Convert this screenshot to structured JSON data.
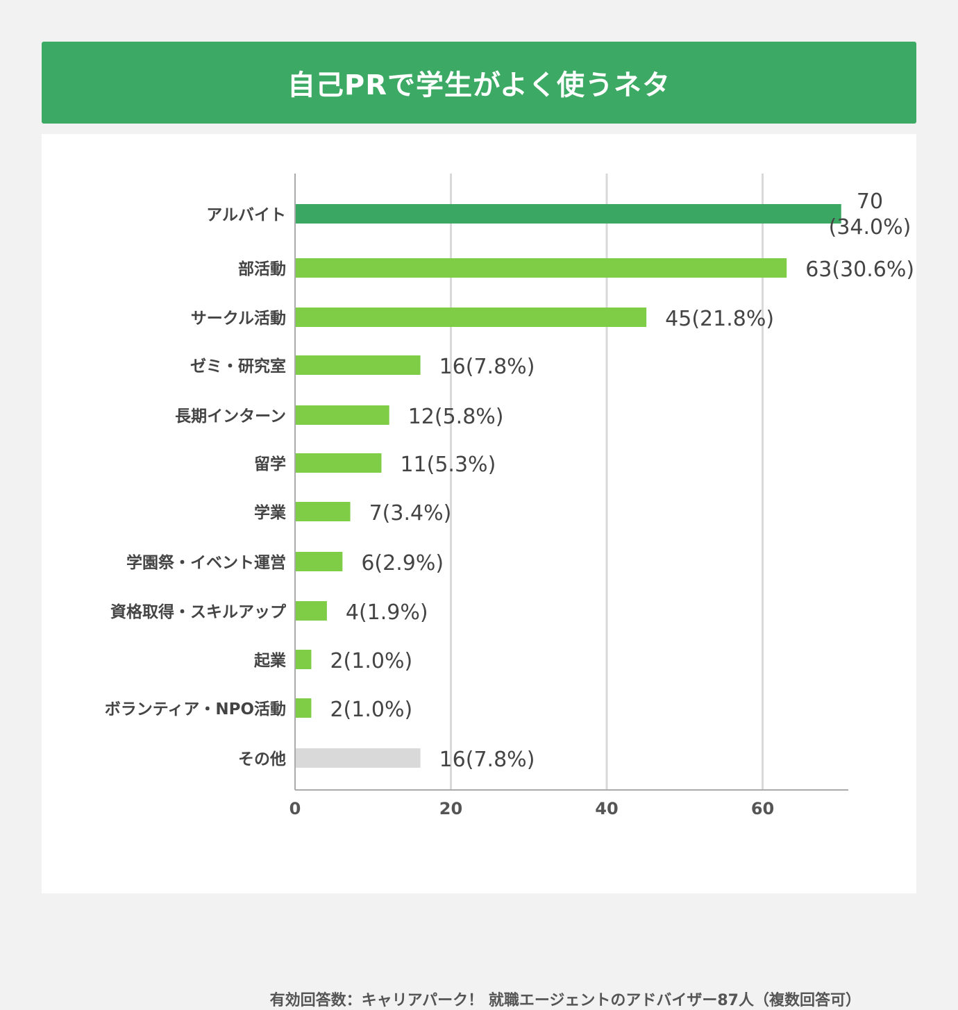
{
  "header": {
    "title": "自己PRで学生がよく使うネタ"
  },
  "footer": {
    "note": "有効回答数：キャリアパーク！ 就職エージェントのアドバイザー87人（複数回答可）"
  },
  "colors": {
    "title_bg": "#3caa64",
    "top_bar": "#3aa863",
    "bar": "#7fcc47",
    "other_bar": "#d9d9d9",
    "grid": "#d9d9d9",
    "axis": "#aaaaaa"
  },
  "chart_data": {
    "type": "bar",
    "orientation": "horizontal",
    "categories": [
      "アルバイト",
      "部活動",
      "サークル活動",
      "ゼミ・研究室",
      "長期インターン",
      "留学",
      "学業",
      "学園祭・イベント運営",
      "資格取得・スキルアップ",
      "起業",
      "ボランティア・NPO活動",
      "その他"
    ],
    "values": [
      70,
      63,
      45,
      16,
      12,
      11,
      7,
      6,
      4,
      2,
      2,
      16
    ],
    "percents": [
      "34.0%",
      "30.6%",
      "21.8%",
      "7.8%",
      "5.8%",
      "5.3%",
      "3.4%",
      "2.9%",
      "1.9%",
      "1.0%",
      "1.0%",
      "7.8%"
    ],
    "data_labels": [
      "70",
      "63(30.6%)",
      "45(21.8%)",
      "16(7.8%)",
      "12(5.8%)",
      "11(5.3%)",
      "7(3.4%)",
      "6(2.9%)",
      "4(1.9%)",
      "2(1.0%)",
      "2(1.0%)",
      "16(7.8%)"
    ],
    "top_label_second_line": "(34.0%)",
    "x_ticks": [
      "0",
      "20",
      "40",
      "60"
    ],
    "xlim": [
      0,
      71
    ],
    "grid": true
  }
}
